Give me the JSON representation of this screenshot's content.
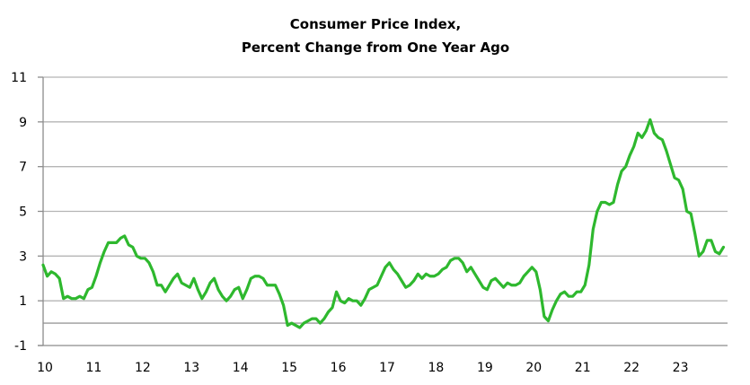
{
  "chart_data": {
    "type": "line",
    "title": [
      "Consumer Price Index,",
      "Percent Change from One Year Ago"
    ],
    "xlabel": "",
    "ylabel": "",
    "x_ticks": [
      "10",
      "11",
      "12",
      "13",
      "14",
      "15",
      "16",
      "17",
      "18",
      "19",
      "20",
      "21",
      "22",
      "23"
    ],
    "y_ticks": [
      "11",
      "9",
      "7",
      "5",
      "3",
      "1",
      "-1"
    ],
    "ylim": [
      -1,
      11
    ],
    "xlim": [
      2010,
      2024
    ],
    "grid": true,
    "grid_values": [
      11,
      9,
      7,
      5,
      3,
      1,
      0
    ],
    "legend": "none",
    "line_color": "#2EB82E",
    "series": [
      {
        "name": "CPI % change from one year ago",
        "frequency": "monthly",
        "start": "2010-01",
        "values": [
          2.6,
          2.1,
          2.3,
          2.2,
          2.0,
          1.1,
          1.2,
          1.1,
          1.1,
          1.2,
          1.1,
          1.5,
          1.6,
          2.1,
          2.7,
          3.2,
          3.6,
          3.6,
          3.6,
          3.8,
          3.9,
          3.5,
          3.4,
          3.0,
          2.9,
          2.9,
          2.7,
          2.3,
          1.7,
          1.7,
          1.4,
          1.7,
          2.0,
          2.2,
          1.8,
          1.7,
          1.6,
          2.0,
          1.5,
          1.1,
          1.4,
          1.8,
          2.0,
          1.5,
          1.2,
          1.0,
          1.2,
          1.5,
          1.6,
          1.1,
          1.5,
          2.0,
          2.1,
          2.1,
          2.0,
          1.7,
          1.7,
          1.7,
          1.3,
          0.8,
          -0.1,
          0.0,
          -0.1,
          -0.2,
          0.0,
          0.1,
          0.2,
          0.2,
          0.0,
          0.2,
          0.5,
          0.7,
          1.4,
          1.0,
          0.9,
          1.1,
          1.0,
          1.0,
          0.8,
          1.1,
          1.5,
          1.6,
          1.7,
          2.1,
          2.5,
          2.7,
          2.4,
          2.2,
          1.9,
          1.6,
          1.7,
          1.9,
          2.2,
          2.0,
          2.2,
          2.1,
          2.1,
          2.2,
          2.4,
          2.5,
          2.8,
          2.9,
          2.9,
          2.7,
          2.3,
          2.5,
          2.2,
          1.9,
          1.6,
          1.5,
          1.9,
          2.0,
          1.8,
          1.6,
          1.8,
          1.7,
          1.7,
          1.8,
          2.1,
          2.3,
          2.5,
          2.3,
          1.5,
          0.3,
          0.1,
          0.6,
          1.0,
          1.3,
          1.4,
          1.2,
          1.2,
          1.4,
          1.4,
          1.7,
          2.6,
          4.2,
          5.0,
          5.4,
          5.4,
          5.3,
          5.4,
          6.2,
          6.8,
          7.0,
          7.5,
          7.9,
          8.5,
          8.3,
          8.6,
          9.1,
          8.5,
          8.3,
          8.2,
          7.7,
          7.1,
          6.5,
          6.4,
          6.0,
          5.0,
          4.9,
          4.0,
          3.0,
          3.2,
          3.7,
          3.7,
          3.2,
          3.1,
          3.4
        ]
      }
    ]
  }
}
